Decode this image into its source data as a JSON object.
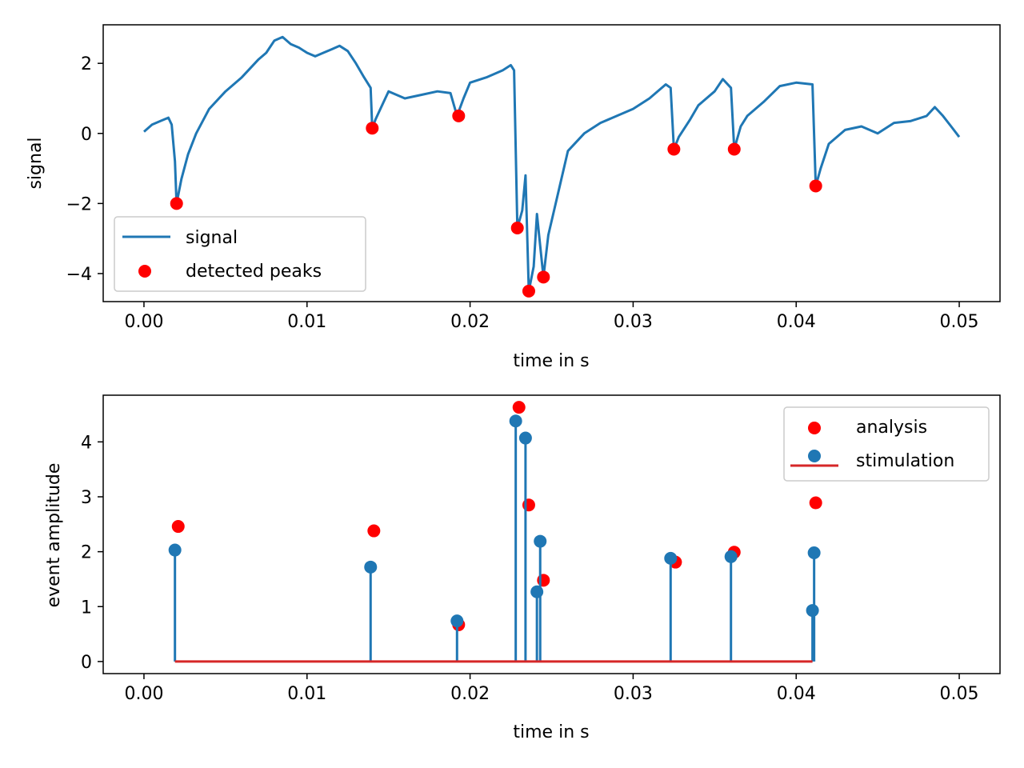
{
  "chart_data": [
    {
      "type": "line",
      "title": "",
      "xlabel": "time in s",
      "ylabel": "signal",
      "xlim": [
        -0.0025,
        0.0525
      ],
      "ylim": [
        -4.8,
        3.1
      ],
      "xticks": [
        0.0,
        0.01,
        0.02,
        0.03,
        0.04,
        0.05
      ],
      "xtick_labels": [
        "0.00",
        "0.01",
        "0.02",
        "0.03",
        "0.04",
        "0.05"
      ],
      "yticks": [
        2,
        0,
        -2,
        -4
      ],
      "ytick_labels": [
        "2",
        "0",
        "−2",
        "−4"
      ],
      "legend_position": "lower-left",
      "series": [
        {
          "name": "signal",
          "kind": "line",
          "color": "#1f77b4",
          "points": [
            [
              0.0,
              0.05
            ],
            [
              0.0005,
              0.25
            ],
            [
              0.001,
              0.35
            ],
            [
              0.0015,
              0.45
            ],
            [
              0.0017,
              0.25
            ],
            [
              0.0019,
              -0.8
            ],
            [
              0.002,
              -2.0
            ],
            [
              0.0023,
              -1.3
            ],
            [
              0.0027,
              -0.6
            ],
            [
              0.0032,
              0.0
            ],
            [
              0.004,
              0.7
            ],
            [
              0.005,
              1.2
            ],
            [
              0.006,
              1.6
            ],
            [
              0.007,
              2.1
            ],
            [
              0.0075,
              2.3
            ],
            [
              0.008,
              2.65
            ],
            [
              0.0085,
              2.75
            ],
            [
              0.009,
              2.55
            ],
            [
              0.0095,
              2.45
            ],
            [
              0.01,
              2.3
            ],
            [
              0.0105,
              2.2
            ],
            [
              0.011,
              2.3
            ],
            [
              0.0115,
              2.4
            ],
            [
              0.012,
              2.5
            ],
            [
              0.0125,
              2.35
            ],
            [
              0.013,
              2.0
            ],
            [
              0.0135,
              1.6
            ],
            [
              0.0139,
              1.3
            ],
            [
              0.014,
              0.15
            ],
            [
              0.0142,
              0.4
            ],
            [
              0.0145,
              0.7
            ],
            [
              0.015,
              1.2
            ],
            [
              0.016,
              1.0
            ],
            [
              0.017,
              1.1
            ],
            [
              0.018,
              1.2
            ],
            [
              0.0188,
              1.15
            ],
            [
              0.0192,
              0.5
            ],
            [
              0.0196,
              1.0
            ],
            [
              0.02,
              1.45
            ],
            [
              0.021,
              1.6
            ],
            [
              0.022,
              1.8
            ],
            [
              0.0225,
              1.95
            ],
            [
              0.0227,
              1.8
            ],
            [
              0.0229,
              -2.7
            ],
            [
              0.0232,
              -2.2
            ],
            [
              0.0234,
              -1.2
            ],
            [
              0.0236,
              -4.5
            ],
            [
              0.0239,
              -3.8
            ],
            [
              0.0241,
              -2.3
            ],
            [
              0.0243,
              -3.2
            ],
            [
              0.0245,
              -4.1
            ],
            [
              0.0248,
              -2.9
            ],
            [
              0.0255,
              -1.5
            ],
            [
              0.026,
              -0.5
            ],
            [
              0.027,
              0.0
            ],
            [
              0.028,
              0.3
            ],
            [
              0.029,
              0.5
            ],
            [
              0.03,
              0.7
            ],
            [
              0.031,
              1.0
            ],
            [
              0.032,
              1.4
            ],
            [
              0.0323,
              1.3
            ],
            [
              0.0325,
              -0.45
            ],
            [
              0.0328,
              -0.1
            ],
            [
              0.0335,
              0.4
            ],
            [
              0.034,
              0.8
            ],
            [
              0.035,
              1.2
            ],
            [
              0.0355,
              1.55
            ],
            [
              0.036,
              1.3
            ],
            [
              0.0362,
              -0.45
            ],
            [
              0.0366,
              0.2
            ],
            [
              0.037,
              0.5
            ],
            [
              0.038,
              0.9
            ],
            [
              0.039,
              1.35
            ],
            [
              0.04,
              1.45
            ],
            [
              0.041,
              1.4
            ],
            [
              0.0412,
              -1.5
            ],
            [
              0.0415,
              -1.0
            ],
            [
              0.042,
              -0.3
            ],
            [
              0.043,
              0.1
            ],
            [
              0.044,
              0.2
            ],
            [
              0.045,
              0.0
            ],
            [
              0.046,
              0.3
            ],
            [
              0.047,
              0.35
            ],
            [
              0.048,
              0.5
            ],
            [
              0.0485,
              0.75
            ],
            [
              0.049,
              0.5
            ],
            [
              0.0495,
              0.2
            ],
            [
              0.05,
              -0.1
            ]
          ]
        },
        {
          "name": "detected peaks",
          "kind": "scatter",
          "color": "#ff0000",
          "points": [
            [
              0.002,
              -2.0
            ],
            [
              0.014,
              0.15
            ],
            [
              0.0193,
              0.5
            ],
            [
              0.0229,
              -2.7
            ],
            [
              0.0236,
              -4.5
            ],
            [
              0.0245,
              -4.1
            ],
            [
              0.0325,
              -0.45
            ],
            [
              0.0362,
              -0.45
            ],
            [
              0.0412,
              -1.5
            ]
          ]
        }
      ]
    },
    {
      "type": "scatter",
      "title": "",
      "xlabel": "time in s",
      "ylabel": "event amplitude",
      "xlim": [
        -0.0025,
        0.0525
      ],
      "ylim": [
        -0.22,
        4.85
      ],
      "xticks": [
        0.0,
        0.01,
        0.02,
        0.03,
        0.04,
        0.05
      ],
      "xtick_labels": [
        "0.00",
        "0.01",
        "0.02",
        "0.03",
        "0.04",
        "0.05"
      ],
      "yticks": [
        0,
        1,
        2,
        3,
        4
      ],
      "ytick_labels": [
        "0",
        "1",
        "2",
        "3",
        "4"
      ],
      "legend_position": "upper-right",
      "baseline": {
        "y": 0,
        "x_start": 0.0019,
        "x_end": 0.041,
        "color": "#d62728"
      },
      "series": [
        {
          "name": "analysis",
          "kind": "scatter",
          "color": "#ff0000",
          "x": [
            0.0021,
            0.0141,
            0.0193,
            0.023,
            0.0236,
            0.0245,
            0.0326,
            0.0362,
            0.0412
          ],
          "y": [
            2.46,
            2.38,
            0.67,
            4.63,
            2.85,
            1.48,
            1.81,
            1.99,
            2.89
          ]
        },
        {
          "name": "stimulation",
          "kind": "stem",
          "color": "#1f77b4",
          "x": [
            0.0019,
            0.0139,
            0.0192,
            0.0228,
            0.0234,
            0.0241,
            0.0243,
            0.0323,
            0.036,
            0.041,
            0.0411
          ],
          "y": [
            2.03,
            1.72,
            0.74,
            4.38,
            4.07,
            1.27,
            2.19,
            1.88,
            1.91,
            0.93,
            1.98
          ]
        }
      ]
    }
  ]
}
